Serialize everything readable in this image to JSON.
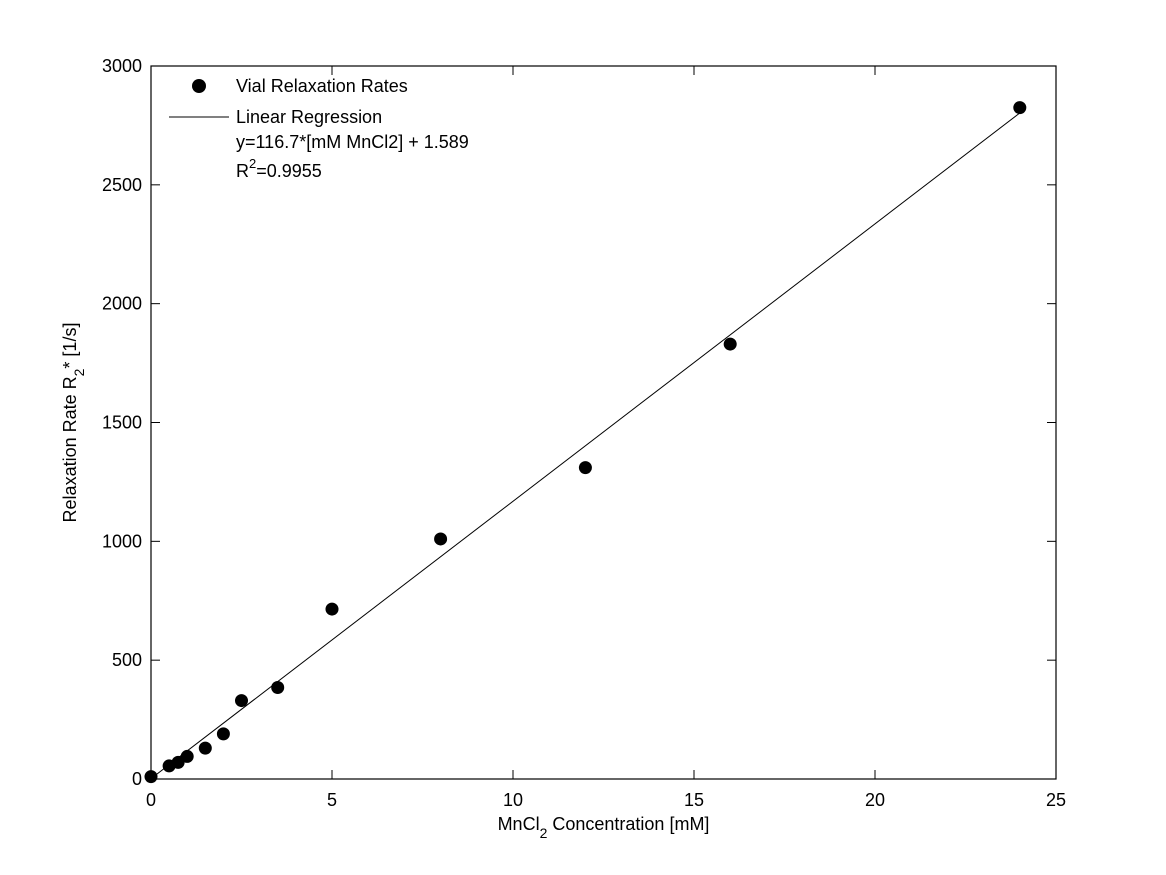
{
  "chart_data": {
    "type": "scatter",
    "xlabel": {
      "main": "MnCl",
      "sub": "2",
      "rest": " Concentration [mM]"
    },
    "ylabel": {
      "main": "Relaxation Rate R",
      "sub": "2",
      "rest": "* [1/s]"
    },
    "xlim": [
      0,
      25
    ],
    "ylim": [
      0,
      3000
    ],
    "xticks": [
      0,
      5,
      10,
      15,
      20,
      25
    ],
    "yticks": [
      0,
      500,
      1000,
      1500,
      2000,
      2500,
      3000
    ],
    "grid": false,
    "legend_position": "top-left",
    "series": [
      {
        "name": "Vial Relaxation Rates",
        "kind": "markers",
        "color": "#000000",
        "x": [
          0,
          0.5,
          0.75,
          1,
          1.5,
          2,
          2.5,
          3.5,
          5,
          8,
          12,
          16,
          24
        ],
        "y": [
          10,
          55,
          70,
          95,
          130,
          190,
          330,
          385,
          715,
          1010,
          1310,
          1830,
          2825
        ]
      },
      {
        "name": "Linear Regression",
        "kind": "line",
        "color": "#000000",
        "slope": 116.7,
        "intercept": 1.589,
        "x_range": [
          0,
          24
        ]
      }
    ],
    "legend": {
      "marker_label": "Vial Relaxation Rates",
      "line_label": "Linear Regression",
      "equation": "y=116.7*[mM MnCl2] + 1.589",
      "r2_prefix": "R",
      "r2_sup": "2",
      "r2_value": "=0.9955"
    }
  }
}
